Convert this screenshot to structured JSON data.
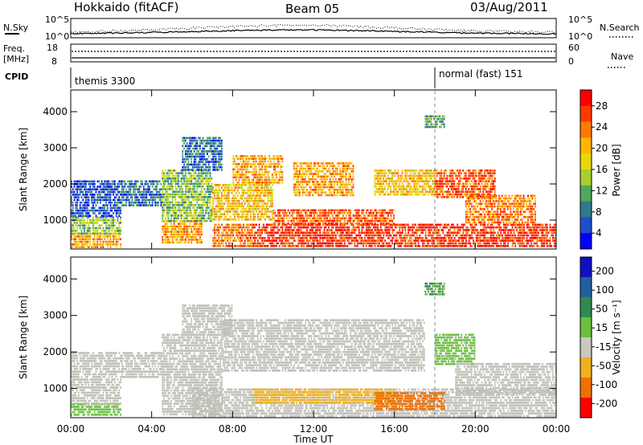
{
  "header": {
    "station": "Hokkaido (fitACF)",
    "beam": "Beam 05",
    "date": "03/Aug/2011"
  },
  "strips": {
    "nsky": {
      "label": "N.Sky",
      "left_ticks": [
        "10^5",
        "10^0"
      ],
      "right_ticks": [
        "10^5",
        "10^0"
      ],
      "right_label": "N.Search"
    },
    "freq": {
      "label_1": "Freq.",
      "label_2": "[MHz]",
      "left_ticks": [
        "18",
        "8"
      ],
      "right_ticks": [
        "60",
        "0"
      ],
      "right_label": "Nave"
    },
    "cpid": {
      "label": "CPID",
      "modes": [
        "themis 3300",
        "normal (fast) 151"
      ]
    }
  },
  "power_panel": {
    "ylabel": "Slant Range [km]",
    "yticks": [
      "4000",
      "3000",
      "2000",
      "1000"
    ],
    "cbar_label": "Power [dB]",
    "cbar_ticks": [
      "28",
      "24",
      "20",
      "16",
      "12",
      "8",
      "4"
    ],
    "cbar_colors": [
      "#ff0000",
      "#ff3800",
      "#ff7a00",
      "#ffb400",
      "#e8d800",
      "#a8cf2e",
      "#52a85a",
      "#2e7a8c",
      "#1f4fc8",
      "#0000ff"
    ]
  },
  "velocity_panel": {
    "ylabel": "Slant Range [km]",
    "yticks": [
      "4000",
      "3000",
      "2000",
      "1000"
    ],
    "cbar_label": "Velocity [m s⁻¹]",
    "cbar_ticks": [
      "200",
      "100",
      "50",
      "15",
      "-15",
      "-50",
      "-100",
      "-200"
    ],
    "cbar_colors": [
      "#1010c0",
      "#2060a0",
      "#2e8a50",
      "#6cc040",
      "#c8c8c0",
      "#f0b020",
      "#f07000",
      "#ff0000"
    ],
    "ground_scatter_color": "#c0c0b8"
  },
  "xaxis": {
    "ticks": [
      "00:00",
      "04:00",
      "08:00",
      "12:00",
      "16:00",
      "20:00",
      "00:00"
    ],
    "label": "Time UT"
  },
  "chart_data": {
    "type": "heatmap",
    "x_unit": "hours UT",
    "x_range": [
      0,
      24
    ],
    "y_range": [
      200,
      4600
    ],
    "mode_change_time": 18.0,
    "power_regions": [
      {
        "t0": 0.0,
        "t1": 2.5,
        "r0": 250,
        "r1": 650,
        "level": 22
      },
      {
        "t0": 0.0,
        "t1": 2.5,
        "r0": 650,
        "r1": 1100,
        "level": 14
      },
      {
        "t0": 0.0,
        "t1": 2.5,
        "r0": 1100,
        "r1": 2100,
        "level": 6
      },
      {
        "t0": 2.5,
        "t1": 4.5,
        "r0": 1400,
        "r1": 2100,
        "level": 8
      },
      {
        "t0": 4.5,
        "t1": 6.5,
        "r0": 400,
        "r1": 1000,
        "level": 22
      },
      {
        "t0": 4.5,
        "t1": 7.0,
        "r0": 1000,
        "r1": 2400,
        "level": 14
      },
      {
        "t0": 5.5,
        "t1": 7.5,
        "r0": 2400,
        "r1": 3300,
        "level": 8
      },
      {
        "t0": 7.0,
        "t1": 9.0,
        "r0": 300,
        "r1": 900,
        "level": 24
      },
      {
        "t0": 7.0,
        "t1": 10.0,
        "r0": 1000,
        "r1": 2000,
        "level": 20
      },
      {
        "t0": 8.0,
        "t1": 10.5,
        "r0": 2000,
        "r1": 2800,
        "level": 22
      },
      {
        "t0": 9.0,
        "t1": 24.0,
        "r0": 300,
        "r1": 900,
        "level": 28
      },
      {
        "t0": 10.0,
        "t1": 16.0,
        "r0": 900,
        "r1": 1300,
        "level": 26
      },
      {
        "t0": 11.0,
        "t1": 14.0,
        "r0": 1700,
        "r1": 2600,
        "level": 22
      },
      {
        "t0": 15.0,
        "t1": 18.0,
        "r0": 1700,
        "r1": 2400,
        "level": 20
      },
      {
        "t0": 18.0,
        "t1": 21.0,
        "r0": 1600,
        "r1": 2400,
        "level": 26
      },
      {
        "t0": 19.5,
        "t1": 23.0,
        "r0": 900,
        "r1": 1700,
        "level": 24
      },
      {
        "t0": 17.5,
        "t1": 18.5,
        "r0": 3600,
        "r1": 3900,
        "level": 12
      }
    ],
    "velocity_regions": [
      {
        "t0": 0.0,
        "t1": 2.5,
        "r0": 250,
        "r1": 600,
        "level": 20
      },
      {
        "t0": 0.0,
        "t1": 2.5,
        "r0": 600,
        "r1": 2000,
        "level": 0
      },
      {
        "t0": 2.5,
        "t1": 4.5,
        "r0": 1300,
        "r1": 2000,
        "level": 0
      },
      {
        "t0": 4.5,
        "t1": 7.5,
        "r0": 300,
        "r1": 2500,
        "level": 0
      },
      {
        "t0": 5.5,
        "t1": 8.0,
        "r0": 2500,
        "r1": 3300,
        "level": 0
      },
      {
        "t0": 7.5,
        "t1": 17.5,
        "r0": 1500,
        "r1": 2900,
        "level": 0
      },
      {
        "t0": 6.0,
        "t1": 24.0,
        "r0": 250,
        "r1": 1000,
        "level": 0
      },
      {
        "t0": 9.0,
        "t1": 16.0,
        "r0": 600,
        "r1": 1000,
        "level": -30
      },
      {
        "t0": 15.0,
        "t1": 18.5,
        "r0": 400,
        "r1": 900,
        "level": -60
      },
      {
        "t0": 18.0,
        "t1": 20.0,
        "r0": 1700,
        "r1": 2500,
        "level": 20
      },
      {
        "t0": 19.0,
        "t1": 24.0,
        "r0": 900,
        "r1": 1700,
        "level": 0
      },
      {
        "t0": 17.5,
        "t1": 18.5,
        "r0": 3600,
        "r1": 3900,
        "level": 30
      }
    ]
  }
}
